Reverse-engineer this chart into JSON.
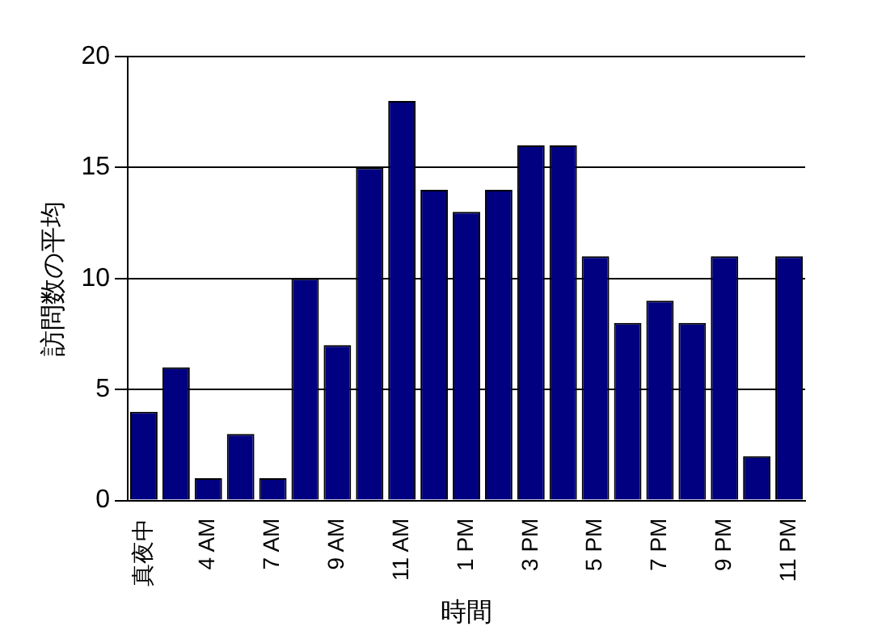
{
  "chart_data": {
    "type": "bar",
    "xlabel": "時間",
    "ylabel": "訪問数の平均",
    "categories": [
      "真夜中",
      null,
      "4 AM",
      null,
      "7 AM",
      null,
      "9 AM",
      null,
      "11 AM",
      null,
      "1 PM",
      null,
      "3 PM",
      null,
      "5 PM",
      null,
      "7 PM",
      null,
      "9 PM",
      null,
      "11 PM"
    ],
    "values": [
      4,
      6,
      1,
      3,
      1,
      10,
      7,
      15,
      18,
      14,
      13,
      14,
      16,
      16,
      11,
      8,
      9,
      8,
      11,
      2,
      11
    ],
    "color": "#000080",
    "ylim": [
      0,
      20
    ],
    "yticks": [
      0,
      5,
      10,
      15,
      20
    ],
    "grid": "y"
  }
}
